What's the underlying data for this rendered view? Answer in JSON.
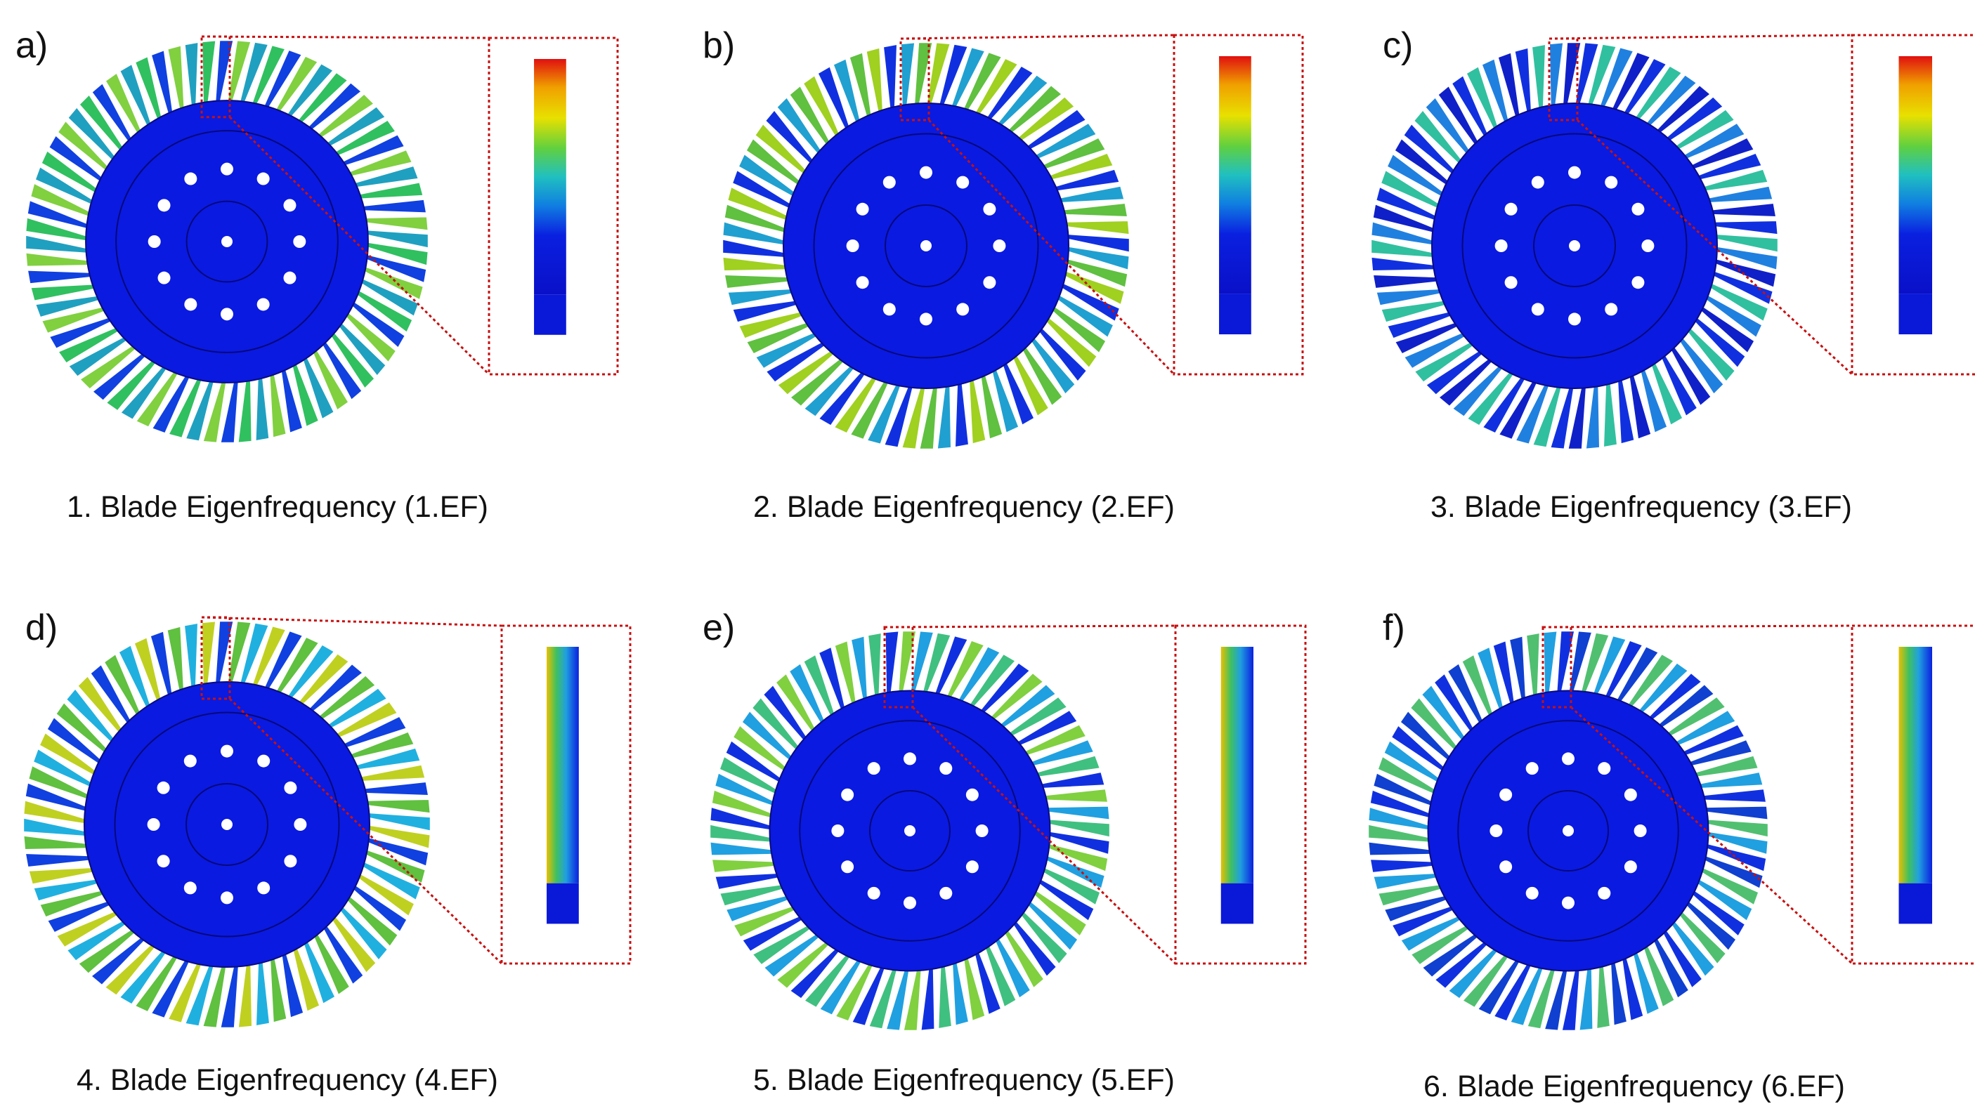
{
  "panels": [
    {
      "label": "a)",
      "caption": "1. Blade Eigenfrequency (1.EF)"
    },
    {
      "label": "b)",
      "caption": "2. Blade Eigenfrequency (2.EF)"
    },
    {
      "label": "c)",
      "caption": "3. Blade Eigenfrequency (3.EF)"
    },
    {
      "label": "d)",
      "caption": "4. Blade Eigenfrequency (4.EF)"
    },
    {
      "label": "e)",
      "caption": "5. Blade Eigenfrequency (5.EF)"
    },
    {
      "label": "f)",
      "caption": "6. Blade Eigenfrequency (6.EF)"
    }
  ]
}
